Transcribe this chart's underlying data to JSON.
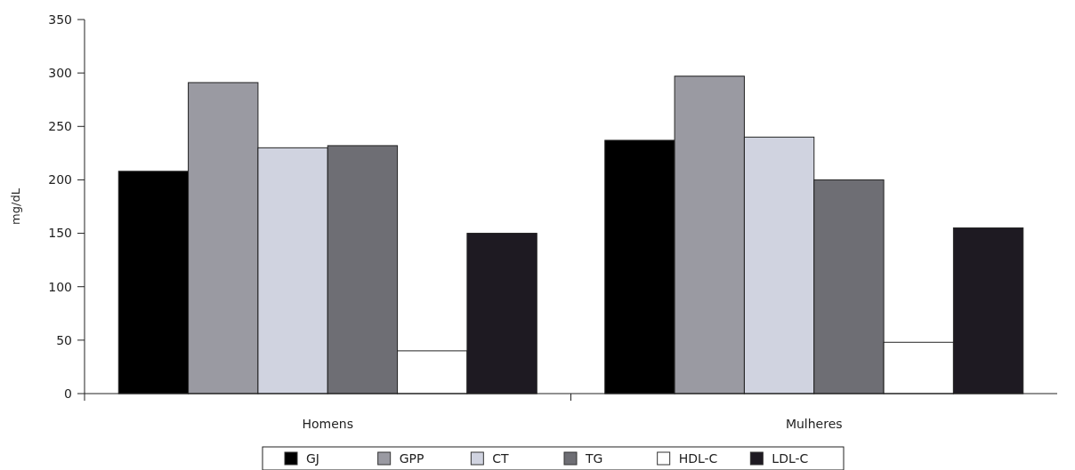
{
  "chart_data": {
    "type": "bar",
    "ylabel": "mg/dL",
    "categories": [
      "Homens",
      "Mulheres"
    ],
    "series": [
      {
        "name": "GJ",
        "color": "#000000",
        "values": [
          208,
          237
        ]
      },
      {
        "name": "GPP",
        "color": "#9a9aa2",
        "values": [
          291,
          297
        ]
      },
      {
        "name": "CT",
        "color": "#d0d3e0",
        "values": [
          230,
          240
        ]
      },
      {
        "name": "TG",
        "color": "#6e6e74",
        "values": [
          232,
          200
        ]
      },
      {
        "name": "HDL-C",
        "color": "#ffffff",
        "values": [
          40,
          48
        ]
      },
      {
        "name": "LDL-C",
        "color": "#1e1a22",
        "values": [
          150,
          155
        ]
      }
    ],
    "ylim": [
      0,
      350
    ],
    "yticks": [
      0,
      50,
      100,
      150,
      200,
      250,
      300,
      350
    ],
    "grid": false,
    "legend": "bottom"
  }
}
